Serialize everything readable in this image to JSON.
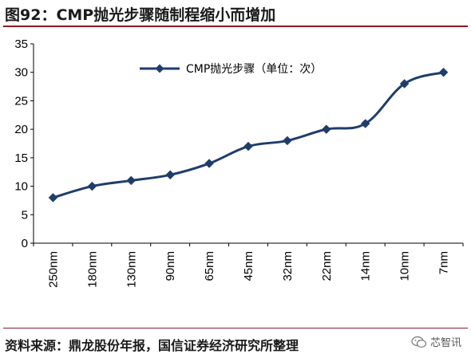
{
  "figure": {
    "title": "图92：CMP抛光步骤随制程缩小而增加",
    "source": "资料来源：鼎龙股份年报，国信证券经济研究所整理",
    "watermark": "芯智讯",
    "watermark_icon": "wechat-icon"
  },
  "colors": {
    "line": "#1f3d6b",
    "marker": "#1f3d6b",
    "axis": "#000000",
    "rule": "#8c1c24"
  },
  "chart_data": {
    "type": "line",
    "title": "",
    "xlabel": "",
    "ylabel": "",
    "categories": [
      "250nm",
      "180nm",
      "130nm",
      "90nm",
      "65nm",
      "45nm",
      "32nm",
      "22nm",
      "14nm",
      "10nm",
      "7nm"
    ],
    "series": [
      {
        "name": "CMP抛光步骤（单位：次）",
        "values": [
          8,
          10,
          11,
          12,
          14,
          17,
          18,
          20,
          21,
          28,
          30
        ]
      }
    ],
    "ylim": [
      0,
      35
    ],
    "yticks": [
      0,
      5,
      10,
      15,
      20,
      25,
      30,
      35
    ],
    "grid": false,
    "legend": "top-center",
    "marker": "diamond",
    "smooth": true
  }
}
